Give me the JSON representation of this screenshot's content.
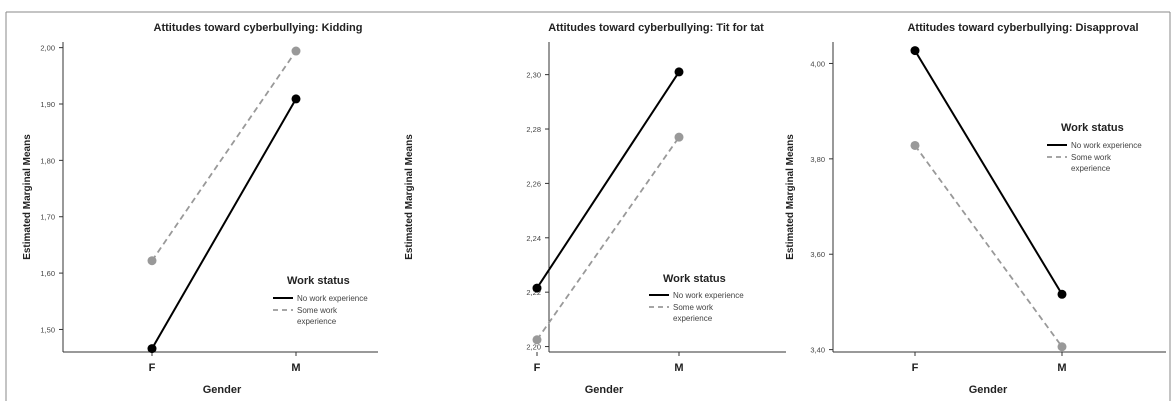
{
  "chart_data": [
    {
      "type": "line",
      "title": "Attitudes toward cyberbullying: Kidding",
      "xlabel": "Gender",
      "ylabel": "Estimated Marginal Means",
      "categories": [
        "F",
        "M"
      ],
      "ylim": [
        1.46,
        2.01
      ],
      "yticks": [
        "1,50",
        "1,60",
        "1,70",
        "1,80",
        "1,90",
        "2,00"
      ],
      "legend_title": "Work status",
      "legend_position": "bottom-right",
      "series": [
        {
          "name": "No work experience",
          "values": [
            1.466,
            1.909
          ],
          "style": "solid",
          "color": "#000000"
        },
        {
          "name": "Some work experience",
          "values": [
            1.622,
            1.994
          ],
          "style": "dashed",
          "color": "#999999"
        }
      ]
    },
    {
      "type": "line",
      "title": "Attitudes toward cyberbullying: Tit for tat",
      "xlabel": "Gender",
      "ylabel": "Estimated Marginal Means",
      "categories": [
        "F",
        "M"
      ],
      "ylim": [
        2.198,
        2.312
      ],
      "yticks": [
        "2,20",
        "2,22",
        "2,24",
        "2,26",
        "2,28",
        "2,30"
      ],
      "legend_title": "Work status",
      "legend_position": "bottom-right",
      "series": [
        {
          "name": "No work experience",
          "values": [
            2.2215,
            2.301
          ],
          "style": "solid",
          "color": "#000000"
        },
        {
          "name": "Some work experience",
          "values": [
            2.2025,
            2.277
          ],
          "style": "dashed",
          "color": "#999999"
        }
      ]
    },
    {
      "type": "line",
      "title": "Attitudes toward cyberbullying: Disapproval",
      "xlabel": "Gender",
      "ylabel": "Estimated Marginal Means",
      "categories": [
        "F",
        "M"
      ],
      "ylim": [
        3.395,
        4.045
      ],
      "yticks": [
        "3,40",
        "3,60",
        "3,80",
        "4,00"
      ],
      "legend_title": "Work status",
      "legend_position": "top-right",
      "series": [
        {
          "name": "No work experience",
          "values": [
            4.027,
            3.516
          ],
          "style": "solid",
          "color": "#000000"
        },
        {
          "name": "Some work experience",
          "values": [
            3.828,
            3.406
          ],
          "style": "dashed",
          "color": "#999999"
        }
      ]
    }
  ]
}
